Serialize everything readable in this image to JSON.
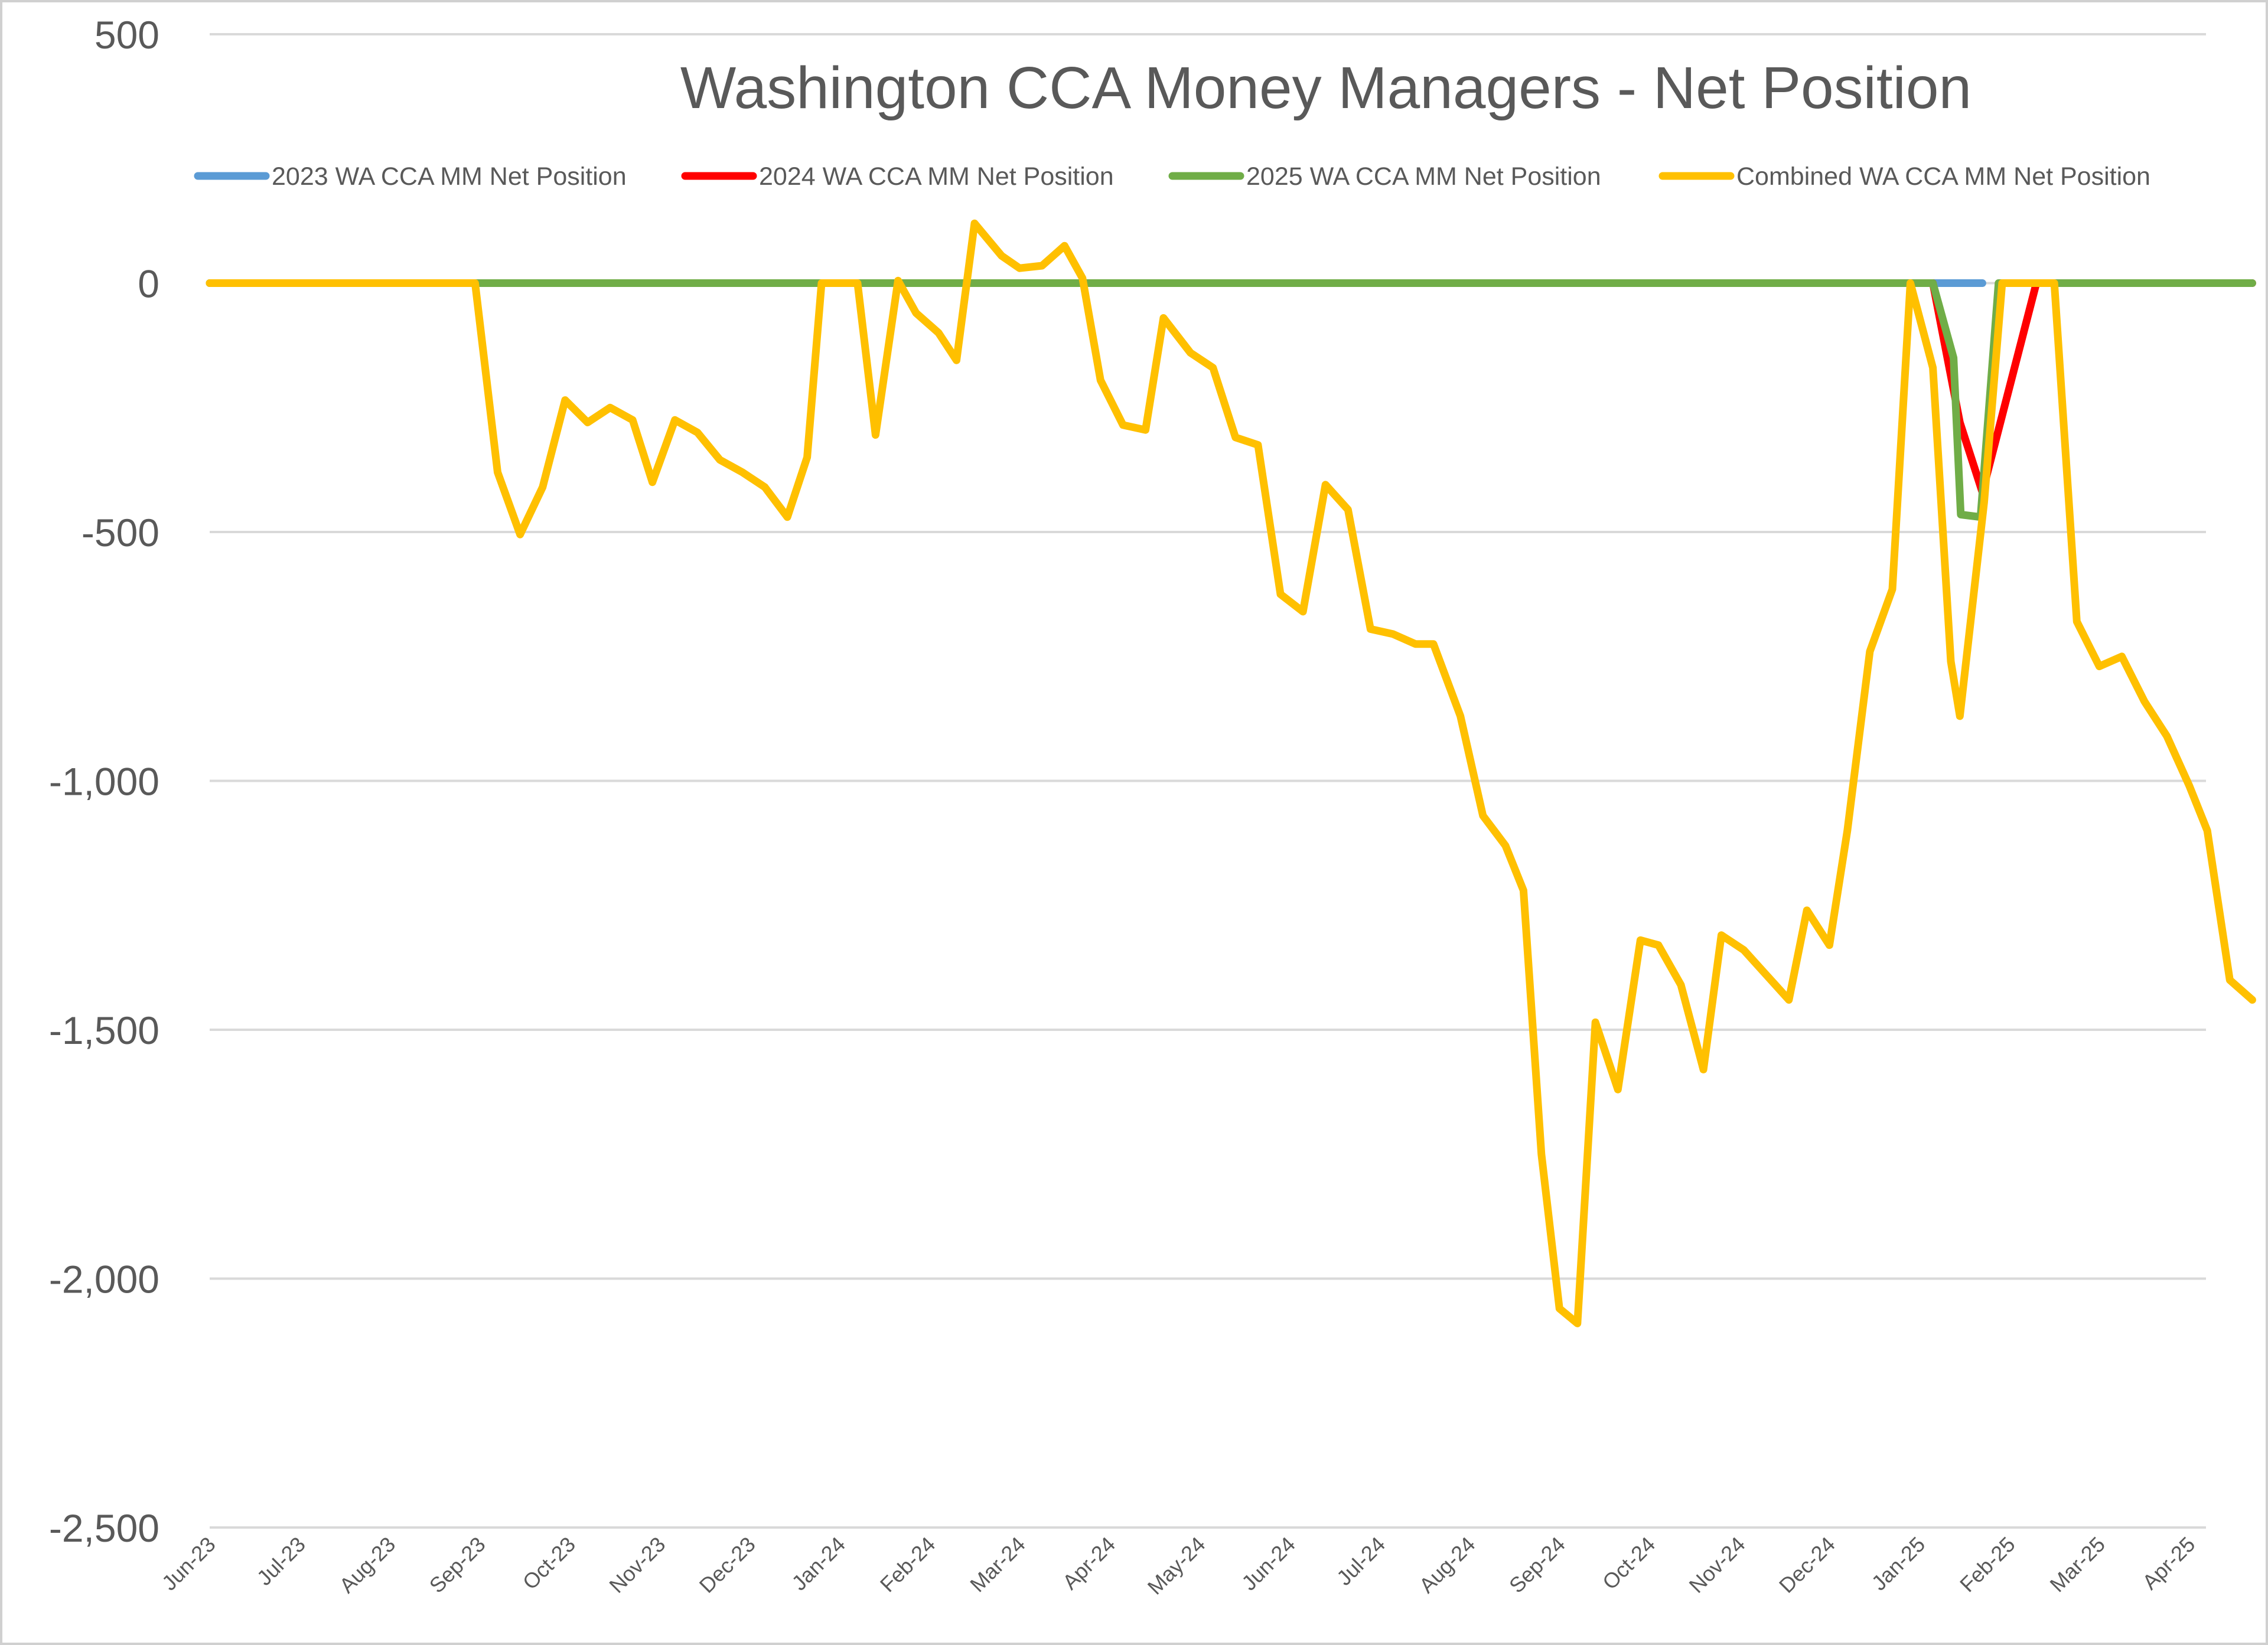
{
  "chart_data": {
    "type": "line",
    "title": "Washington CCA Money Managers - Net Position",
    "xlabel": "",
    "ylabel": "",
    "ylim": [
      -2500,
      500
    ],
    "y_ticks": [
      500,
      0,
      -500,
      -1000,
      -1500,
      -2000,
      -2500
    ],
    "y_tick_labels": [
      "500",
      "0",
      "-500",
      "-1,000",
      "-1,500",
      "-2,000",
      "-2,500"
    ],
    "x_tick_labels": [
      "Jun-23",
      "Jul-23",
      "Aug-23",
      "Sep-23",
      "Oct-23",
      "Nov-23",
      "Dec-23",
      "Jan-24",
      "Feb-24",
      "Mar-24",
      "Apr-24",
      "May-24",
      "Jun-24",
      "Jul-24",
      "Aug-24",
      "Sep-24",
      "Oct-24",
      "Nov-24",
      "Dec-24",
      "Jan-25",
      "Feb-25",
      "Mar-25",
      "Apr-25"
    ],
    "x_range": [
      0,
      22.7
    ],
    "grid": true,
    "legend_position": "top",
    "series": [
      {
        "name": "2023 WA CCA MM Net Position",
        "color": "#5B9BD5",
        "x": [
          0,
          19.15,
          19.45,
          19.7
        ],
        "y": [
          0,
          0,
          0,
          0
        ]
      },
      {
        "name": "2024 WA CCA MM Net Position",
        "color": "#FF0000",
        "x": [
          19.15,
          19.45,
          19.7,
          20.3,
          22.7
        ],
        "y": [
          0,
          -280,
          -420,
          0,
          0
        ]
      },
      {
        "name": "2025 WA CCA MM Net Position",
        "color": "#70AD47",
        "x": [
          0,
          19.15,
          19.38,
          19.46,
          19.68,
          19.88,
          22.7
        ],
        "y": [
          0,
          0,
          -150,
          -465,
          -470,
          0,
          0
        ]
      },
      {
        "name": "Combined WA CCA MM Net Position",
        "color": "#FFC000",
        "x": [
          0,
          2.95,
          3.2,
          3.45,
          3.7,
          3.95,
          4.2,
          4.45,
          4.7,
          4.92,
          5.17,
          5.42,
          5.67,
          5.92,
          6.17,
          6.42,
          6.64,
          6.8,
          7.2,
          7.4,
          7.65,
          7.85,
          8.1,
          8.3,
          8.5,
          8.8,
          9.0,
          9.25,
          9.5,
          9.7,
          9.9,
          10.15,
          10.4,
          10.6,
          10.9,
          11.15,
          11.4,
          11.65,
          11.9,
          12.15,
          12.4,
          12.65,
          12.9,
          13.15,
          13.4,
          13.6,
          13.9,
          14.15,
          14.4,
          14.6,
          14.8,
          15.0,
          15.2,
          15.4,
          15.65,
          15.9,
          16.1,
          16.35,
          16.6,
          16.8,
          17.05,
          17.3,
          17.55,
          17.75,
          18.0,
          18.2,
          18.45,
          18.7,
          18.9,
          19.15,
          19.35,
          19.45,
          19.72,
          19.92,
          20.2,
          20.5,
          20.75,
          21.0,
          21.25,
          21.5,
          21.75,
          22.0,
          22.2,
          22.45,
          22.7
        ],
        "y": [
          0,
          0,
          -380,
          -505,
          -410,
          -235,
          -280,
          -250,
          -275,
          -400,
          -275,
          -300,
          -355,
          -380,
          -410,
          -470,
          -350,
          0,
          0,
          -305,
          5,
          -60,
          -100,
          -155,
          120,
          55,
          30,
          35,
          75,
          10,
          -195,
          -285,
          -295,
          -70,
          -140,
          -170,
          -310,
          -325,
          -625,
          -660,
          -405,
          -455,
          -695,
          -705,
          -725,
          -725,
          -870,
          -1070,
          -1130,
          -1220,
          -1750,
          -2060,
          -2090,
          -1485,
          -1620,
          -1320,
          -1330,
          -1410,
          -1580,
          -1310,
          -1340,
          -1390,
          -1440,
          -1260,
          -1330,
          -1100,
          -740,
          -615,
          0,
          -170,
          -760,
          -870,
          -440,
          0,
          0,
          0,
          -680,
          -770,
          -750,
          -840,
          -910,
          -1010,
          -1100,
          -1400,
          -1440
        ]
      }
    ]
  }
}
